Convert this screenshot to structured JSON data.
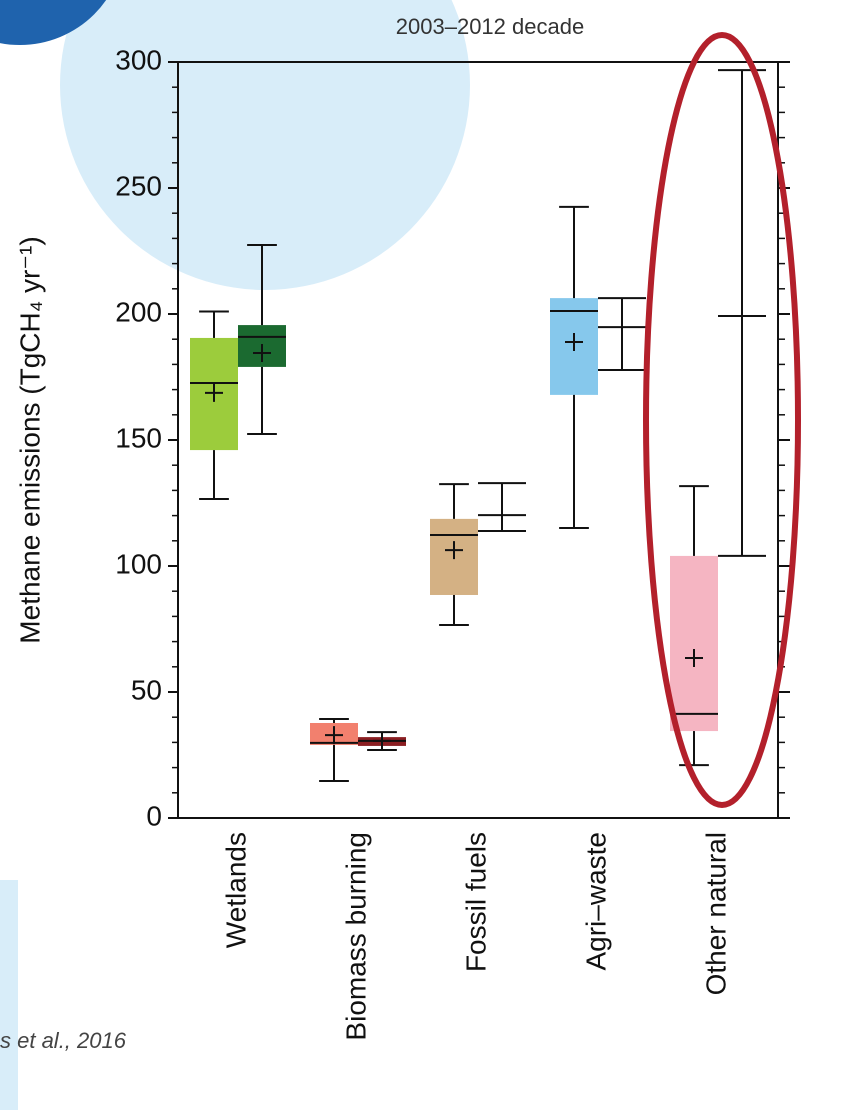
{
  "chart_data": {
    "type": "box",
    "title": "2003–2012 decade",
    "y_label": "Methane emissions (TgCH₄ yr⁻¹)",
    "caption": "s et al., 2016",
    "categories": [
      "Wetlands",
      "Biomass burning",
      "Fossil fuels",
      "Agri–waste",
      "Other natural"
    ],
    "ylim": [
      0,
      300
    ],
    "yticks": [
      0,
      50,
      100,
      150,
      200,
      250,
      300
    ],
    "minor_yticks": [
      10,
      20,
      30,
      40,
      60,
      70,
      80,
      90,
      110,
      120,
      130,
      140,
      160,
      170,
      180,
      190,
      210,
      220,
      230,
      240,
      260,
      270,
      280,
      290
    ],
    "series": [
      {
        "colors": [
          "#9ccc3c",
          "#f2806e",
          "#d4b184",
          "#86c8ec",
          "#f5b5c2"
        ],
        "min": [
          126.6,
          14.7,
          76.6,
          115.1,
          21
        ],
        "q1": [
          146,
          29,
          88.5,
          167.9,
          34.5
        ],
        "median": [
          172.6,
          29.8,
          112.3,
          201.2,
          41.3
        ],
        "q3": [
          190.5,
          37.7,
          118.7,
          206.3,
          104
        ],
        "max": [
          201,
          39.3,
          132.5,
          242.5,
          131.7
        ],
        "mean": [
          168.7,
          32.9,
          106.3,
          188.9,
          63.5
        ]
      },
      {
        "colors": [
          "#1b6a30",
          "#8b1e22",
          null,
          null,
          null
        ],
        "min": [
          152.4,
          27,
          113.9,
          177.8,
          104
        ],
        "q1": [
          179,
          28.6,
          null,
          null,
          null
        ],
        "median": [
          190.9,
          30.6,
          null,
          null,
          null
        ],
        "q3": [
          195.6,
          32.1,
          null,
          null,
          null
        ],
        "max": [
          227.4,
          34.1,
          132.9,
          206.3,
          296.8
        ],
        "mean": [
          184.5,
          30.6,
          120.2,
          194.8,
          199.2
        ]
      }
    ]
  }
}
